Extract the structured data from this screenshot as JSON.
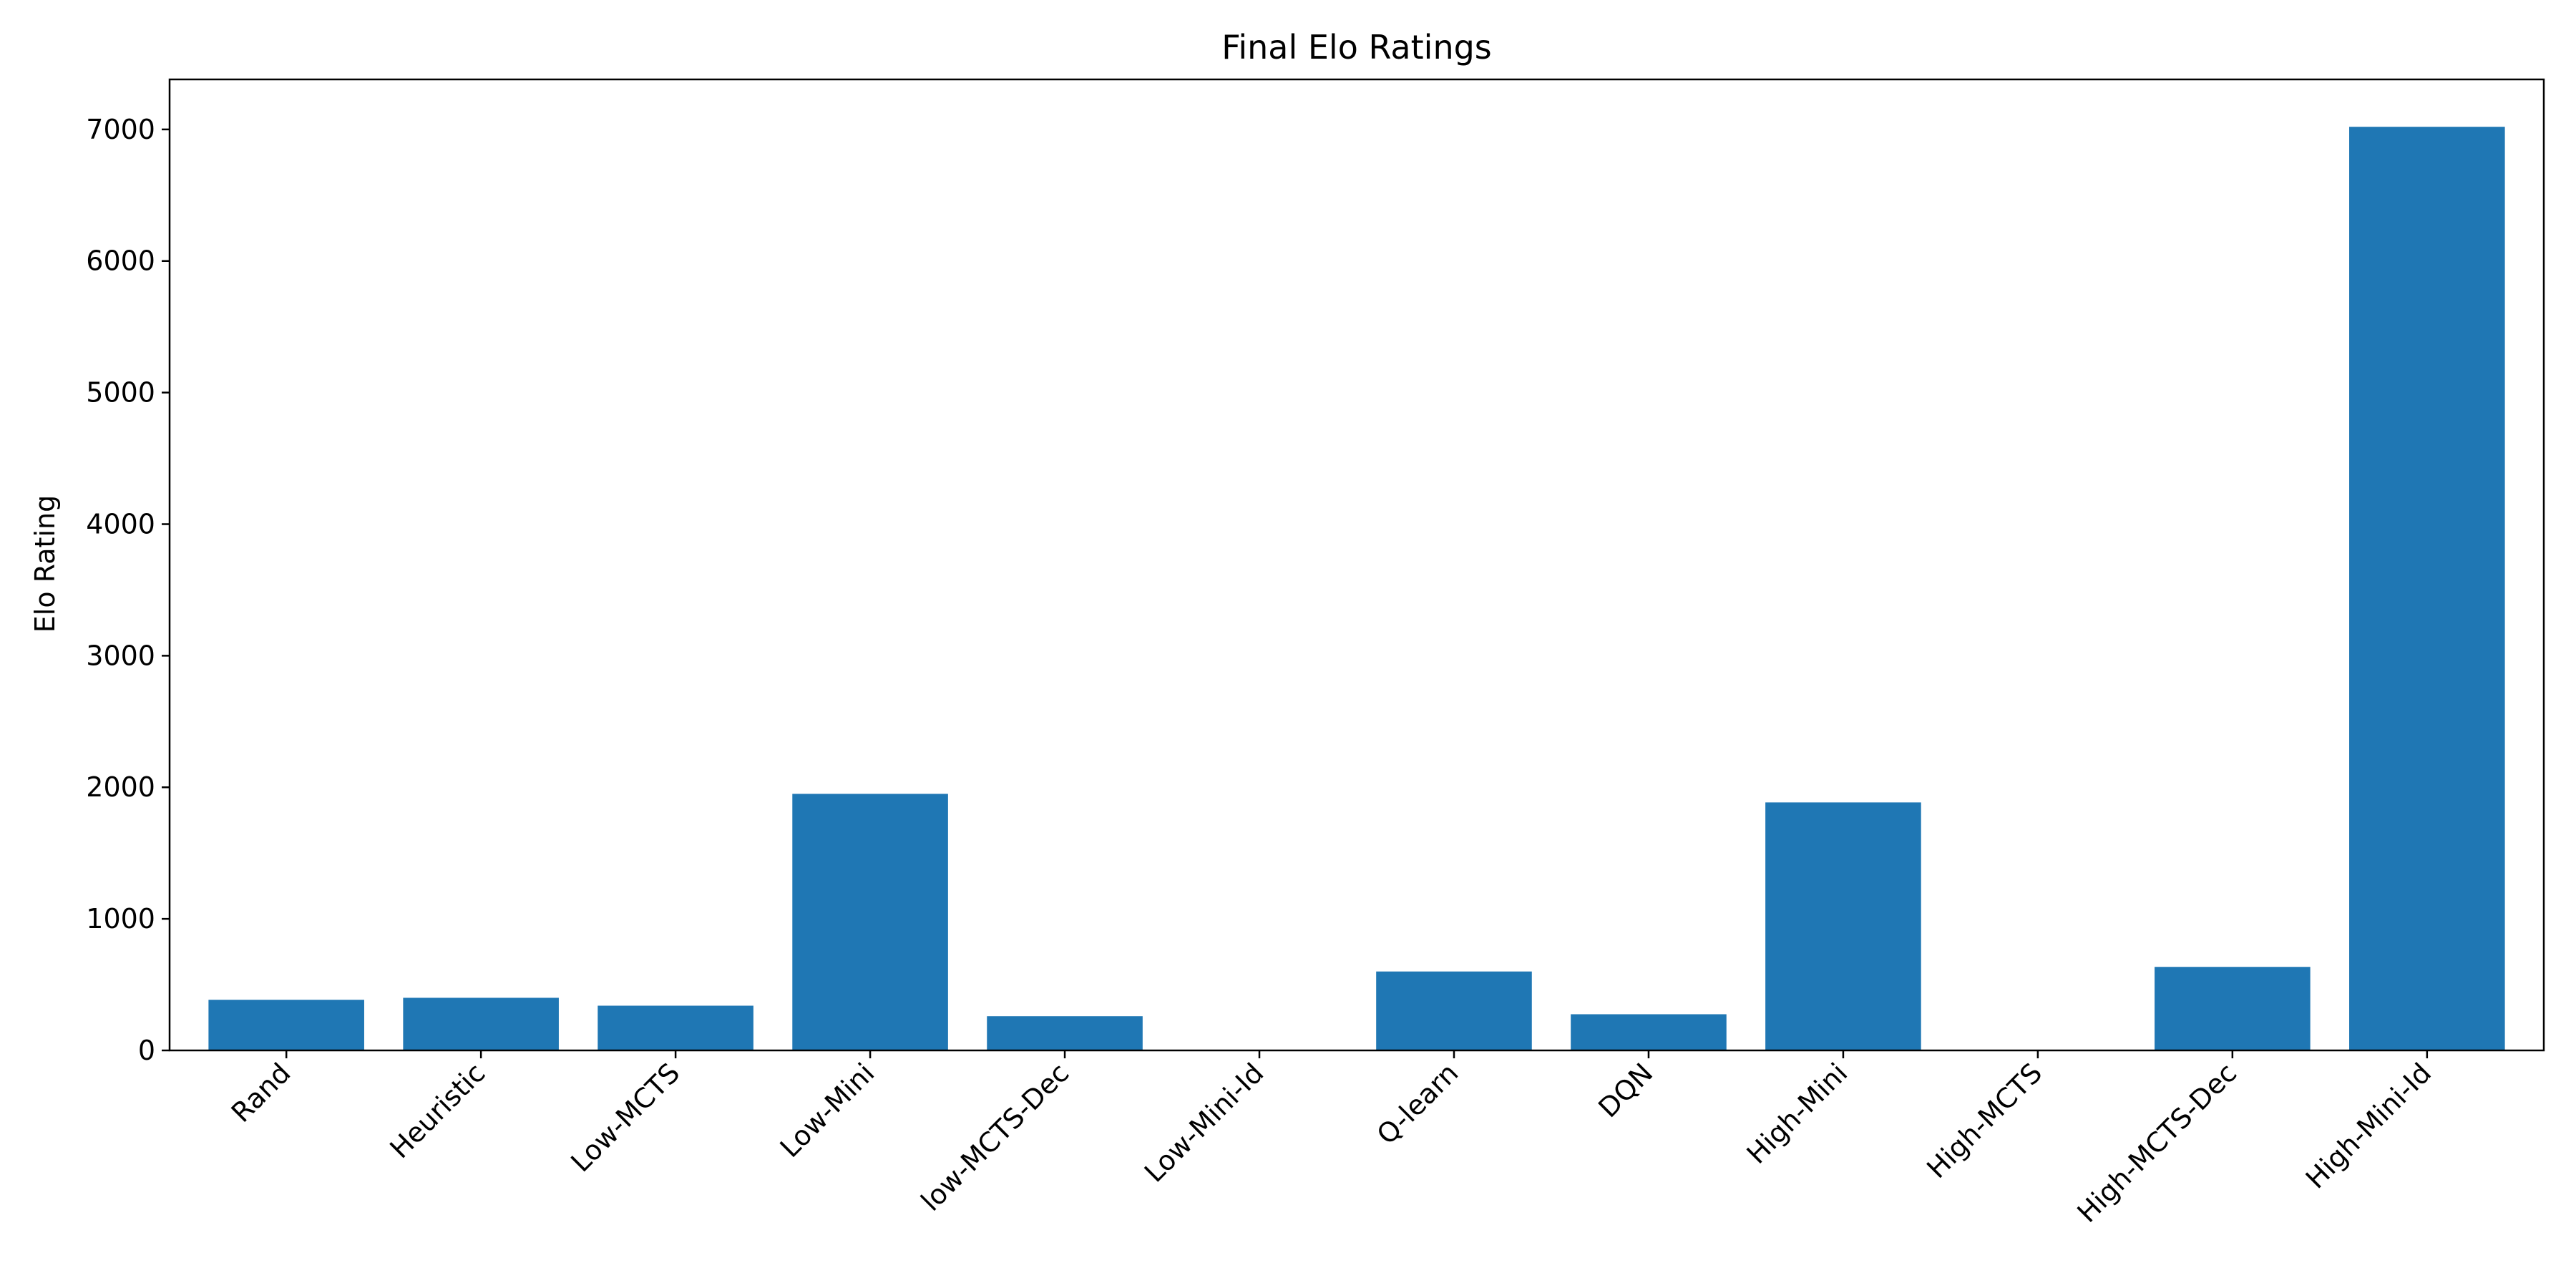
{
  "chart_data": {
    "type": "bar",
    "title": "Final Elo Ratings",
    "xlabel": "",
    "ylabel": "Elo Rating",
    "categories": [
      "Rand",
      "Heuristic",
      "Low-MCTS",
      "Low-Mini",
      "low-MCTS-Dec",
      "Low-Mini-Id",
      "Q-learn",
      "DQN",
      "High-Mini",
      "High-MCTS",
      "High-MCTS-Dec",
      "High-Mini-Id"
    ],
    "values": [
      385,
      400,
      340,
      1950,
      260,
      0,
      600,
      275,
      1885,
      0,
      635,
      7020
    ],
    "ylim": [
      0,
      7380
    ],
    "yticks": [
      0,
      1000,
      2000,
      3000,
      4000,
      5000,
      6000,
      7000
    ],
    "bar_color": "#1f77b4",
    "grid": false,
    "legend": "none"
  }
}
